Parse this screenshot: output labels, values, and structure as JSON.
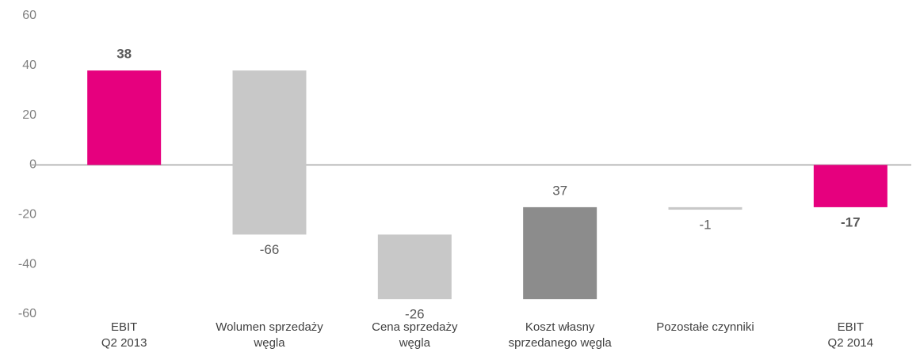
{
  "chart_data": {
    "type": "waterfall",
    "categories": [
      [
        "EBIT",
        "Q2 2013"
      ],
      [
        "Wolumen sprzedaży",
        "węgla"
      ],
      [
        "Cena sprzedaży",
        "węgla"
      ],
      [
        "Koszt własny",
        "sprzedanego węgla"
      ],
      [
        "Pozostałe czynniki"
      ],
      [
        "EBIT",
        "Q2 2014"
      ]
    ],
    "values": [
      38,
      -66,
      -26,
      37,
      -1,
      -17
    ],
    "totals": [
      true,
      false,
      false,
      false,
      false,
      true
    ],
    "colors": [
      "#e6007e",
      "#c8c8c8",
      "#c8c8c8",
      "#8c8c8c",
      "#c8c8c8",
      "#e6007e"
    ],
    "ylim": [
      -60,
      60
    ],
    "yticks": [
      -60,
      -40,
      -20,
      0,
      20,
      40,
      60
    ],
    "grid": false
  }
}
